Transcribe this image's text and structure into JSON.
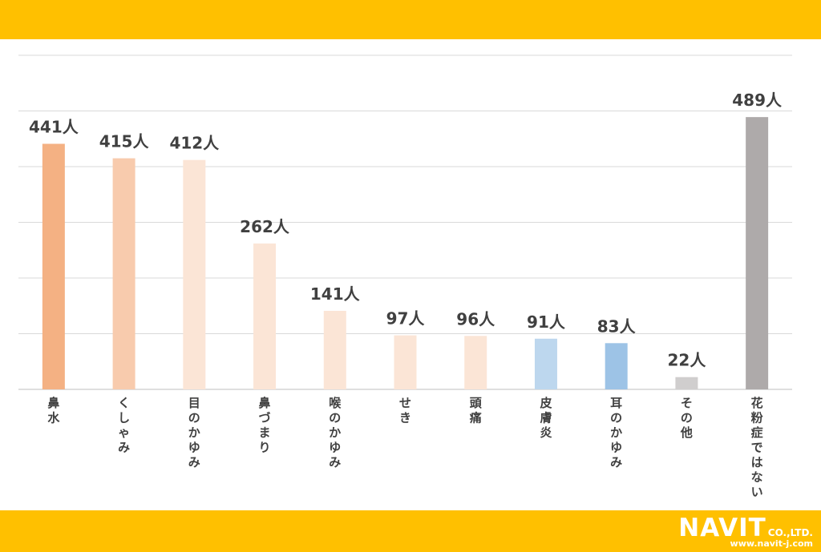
{
  "colors": {
    "band": "#FFC000",
    "grid": "#D9D9D9",
    "axis": "#BFBFBF",
    "label_text": "#404040"
  },
  "logo": {
    "brand": "NAVIT",
    "suffix": "CO.,LTD.",
    "url": "www.navit-j.com"
  },
  "chart_data": {
    "type": "bar",
    "title": "",
    "xlabel": "",
    "ylabel": "",
    "ylim": [
      0,
      600
    ],
    "grid": true,
    "legend": "none",
    "unit": "人",
    "categories": [
      "鼻水",
      "くしゃみ",
      "目のかゆみ",
      "鼻づまり",
      "喉のかゆみ",
      "せき",
      "頭痛",
      "皮膚炎",
      "耳のかゆみ",
      "その他",
      "花粉症ではない"
    ],
    "values": [
      441,
      415,
      412,
      262,
      141,
      97,
      96,
      91,
      83,
      22,
      489
    ],
    "data_labels": [
      "441人",
      "415人",
      "412人",
      "262人",
      "141人",
      "97人",
      "96人",
      "91人",
      "83人",
      "22人",
      "489人"
    ],
    "bar_colors": [
      "#F4B183",
      "#F8CBAD",
      "#FBE5D6",
      "#FBE5D6",
      "#FBE5D6",
      "#FBE5D6",
      "#FBE5D6",
      "#BDD7EE",
      "#9DC3E6",
      "#D0CECE",
      "#AEAAAA"
    ]
  }
}
